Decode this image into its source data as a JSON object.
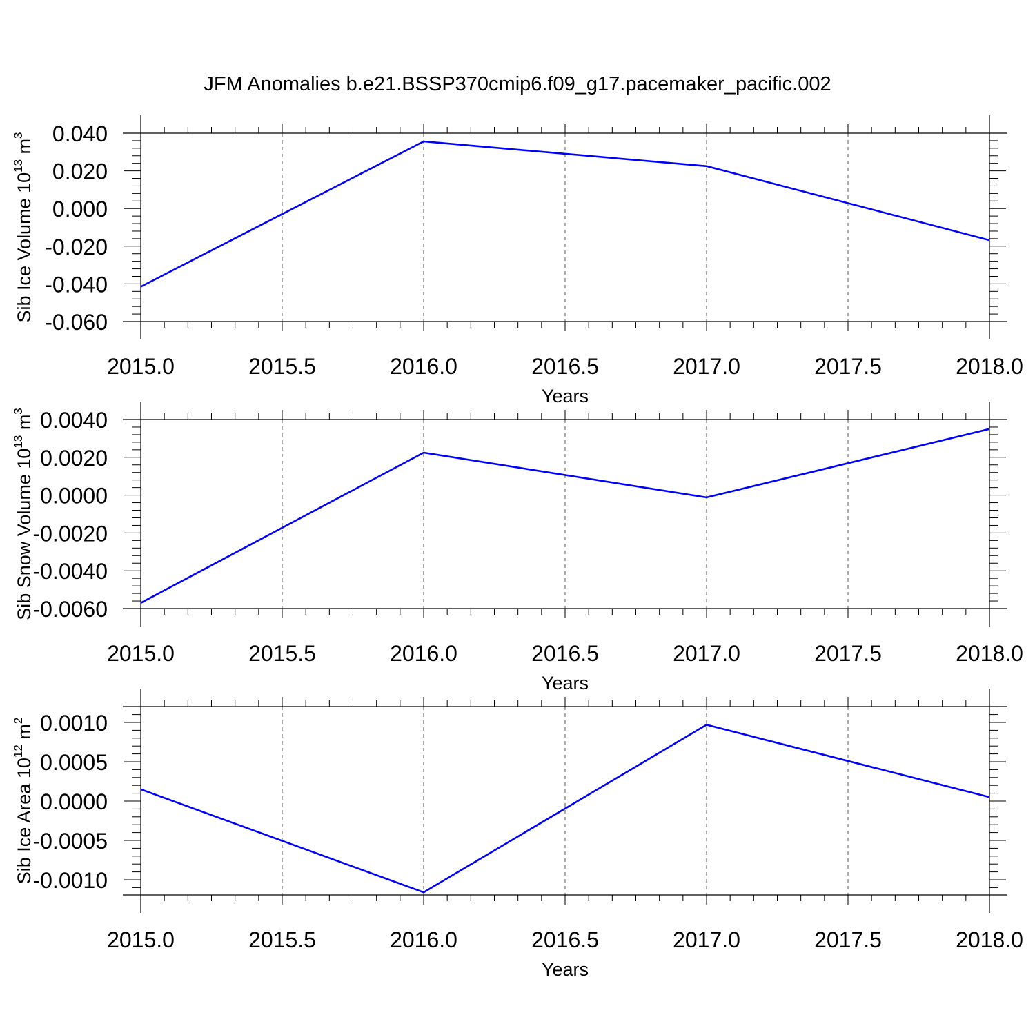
{
  "title": "JFM Anomalies b.e21.BSSP370cmip6.f09_g17.pacemaker_pacific.002",
  "colors": {
    "series": "#0000ff",
    "grid": "#555555",
    "axes": "#000000"
  },
  "chart_data": [
    {
      "type": "line",
      "ylabel": "Sib Ice Volume 10",
      "ylabel_exp": "13",
      "ylabel_unit": "m",
      "ylabel_unit_exp": "3",
      "xlabel": "Years",
      "xlim": [
        2015.0,
        2018.0
      ],
      "ylim": [
        -0.06,
        0.04
      ],
      "x_ticks": [
        "2015.0",
        "2015.5",
        "2016.0",
        "2016.5",
        "2017.0",
        "2017.5",
        "2018.0"
      ],
      "y_ticks": [
        "-0.060",
        "-0.040",
        "-0.020",
        "0.000",
        "0.020",
        "0.040"
      ],
      "grid": "vertical-dashed",
      "x": [
        2015,
        2016,
        2017,
        2018
      ],
      "values": [
        -0.0415,
        0.0356,
        0.0225,
        -0.0168
      ]
    },
    {
      "type": "line",
      "ylabel": "Sib Snow Volume 10",
      "ylabel_exp": "13",
      "ylabel_unit": "m",
      "ylabel_unit_exp": "3",
      "xlabel": "Years",
      "xlim": [
        2015.0,
        2018.0
      ],
      "ylim": [
        -0.006,
        0.004
      ],
      "x_ticks": [
        "2015.0",
        "2015.5",
        "2016.0",
        "2016.5",
        "2017.0",
        "2017.5",
        "2018.0"
      ],
      "y_ticks": [
        "-0.0060",
        "-0.0040",
        "-0.0020",
        "0.0000",
        "0.0020",
        "0.0040"
      ],
      "grid": "vertical-dashed",
      "x": [
        2015,
        2016,
        2017,
        2018
      ],
      "values": [
        -0.0057,
        0.00225,
        -0.00012,
        0.0035
      ]
    },
    {
      "type": "line",
      "ylabel": "Sib Ice Area 10",
      "ylabel_exp": "12",
      "ylabel_unit": "m",
      "ylabel_unit_exp": "2",
      "xlabel": "Years",
      "xlim": [
        2015.0,
        2018.0
      ],
      "ylim": [
        -0.0012,
        0.0012
      ],
      "x_ticks": [
        "2015.0",
        "2015.5",
        "2016.0",
        "2016.5",
        "2017.0",
        "2017.5",
        "2018.0"
      ],
      "y_ticks": [
        "-0.0010",
        "-0.0005",
        "0.0000",
        "0.0005",
        "0.0010"
      ],
      "grid": "vertical-dashed",
      "x": [
        2015,
        2016,
        2017,
        2018
      ],
      "values": [
        0.00015,
        -0.00116,
        0.00097,
        5e-05
      ]
    }
  ]
}
